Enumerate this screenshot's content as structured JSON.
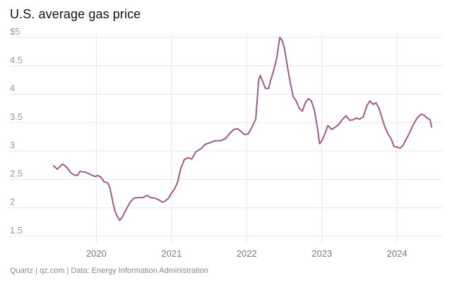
{
  "footer": "Quartz | qz.com | Data: Energy Information Administration",
  "colors": {
    "line": "#a05a8c",
    "grid": "#e6e6e6"
  },
  "chart_data": {
    "type": "line",
    "title": "U.S. average gas price",
    "xlabel": "",
    "ylabel": "",
    "x_range": [
      2019.0,
      2024.6
    ],
    "ylim": [
      1.5,
      5.0
    ],
    "y_ticks": [
      {
        "value": 1.5,
        "label": "1.5"
      },
      {
        "value": 2.0,
        "label": "2"
      },
      {
        "value": 2.5,
        "label": "2.5"
      },
      {
        "value": 3.0,
        "label": "3"
      },
      {
        "value": 3.5,
        "label": "3.5"
      },
      {
        "value": 4.0,
        "label": "4"
      },
      {
        "value": 4.5,
        "label": "4.5"
      },
      {
        "value": 5.0,
        "label": "$5"
      }
    ],
    "x_ticks": [
      {
        "value": 2020,
        "label": "2020"
      },
      {
        "value": 2021,
        "label": "2021"
      },
      {
        "value": 2022,
        "label": "2022"
      },
      {
        "value": 2023,
        "label": "2023"
      },
      {
        "value": 2024,
        "label": "2024"
      }
    ],
    "grid": true,
    "legend": "none",
    "series": [
      {
        "points": [
          [
            2019.43,
            2.74
          ],
          [
            2019.48,
            2.68
          ],
          [
            2019.55,
            2.77
          ],
          [
            2019.6,
            2.72
          ],
          [
            2019.66,
            2.62
          ],
          [
            2019.7,
            2.58
          ],
          [
            2019.75,
            2.57
          ],
          [
            2019.78,
            2.64
          ],
          [
            2019.85,
            2.63
          ],
          [
            2019.9,
            2.6
          ],
          [
            2019.95,
            2.57
          ],
          [
            2019.99,
            2.55
          ],
          [
            2020.02,
            2.57
          ],
          [
            2020.06,
            2.54
          ],
          [
            2020.1,
            2.46
          ],
          [
            2020.15,
            2.44
          ],
          [
            2020.18,
            2.35
          ],
          [
            2020.22,
            2.1
          ],
          [
            2020.25,
            1.93
          ],
          [
            2020.29,
            1.82
          ],
          [
            2020.31,
            1.78
          ],
          [
            2020.35,
            1.85
          ],
          [
            2020.4,
            1.98
          ],
          [
            2020.45,
            2.1
          ],
          [
            2020.5,
            2.17
          ],
          [
            2020.55,
            2.18
          ],
          [
            2020.62,
            2.18
          ],
          [
            2020.68,
            2.22
          ],
          [
            2020.72,
            2.18
          ],
          [
            2020.78,
            2.17
          ],
          [
            2020.83,
            2.14
          ],
          [
            2020.88,
            2.1
          ],
          [
            2020.92,
            2.12
          ],
          [
            2020.96,
            2.17
          ],
          [
            2021.0,
            2.26
          ],
          [
            2021.04,
            2.33
          ],
          [
            2021.08,
            2.45
          ],
          [
            2021.12,
            2.68
          ],
          [
            2021.17,
            2.85
          ],
          [
            2021.22,
            2.88
          ],
          [
            2021.27,
            2.86
          ],
          [
            2021.32,
            2.98
          ],
          [
            2021.4,
            3.05
          ],
          [
            2021.45,
            3.12
          ],
          [
            2021.52,
            3.15
          ],
          [
            2021.58,
            3.18
          ],
          [
            2021.65,
            3.18
          ],
          [
            2021.72,
            3.22
          ],
          [
            2021.78,
            3.32
          ],
          [
            2021.83,
            3.38
          ],
          [
            2021.88,
            3.39
          ],
          [
            2021.92,
            3.35
          ],
          [
            2021.97,
            3.29
          ],
          [
            2022.02,
            3.3
          ],
          [
            2022.07,
            3.42
          ],
          [
            2022.12,
            3.56
          ],
          [
            2022.16,
            4.25
          ],
          [
            2022.18,
            4.33
          ],
          [
            2022.22,
            4.2
          ],
          [
            2022.25,
            4.1
          ],
          [
            2022.29,
            4.1
          ],
          [
            2022.32,
            4.25
          ],
          [
            2022.36,
            4.42
          ],
          [
            2022.4,
            4.64
          ],
          [
            2022.44,
            5.0
          ],
          [
            2022.47,
            4.95
          ],
          [
            2022.5,
            4.82
          ],
          [
            2022.54,
            4.5
          ],
          [
            2022.58,
            4.2
          ],
          [
            2022.62,
            3.95
          ],
          [
            2022.66,
            3.88
          ],
          [
            2022.7,
            3.75
          ],
          [
            2022.74,
            3.7
          ],
          [
            2022.78,
            3.85
          ],
          [
            2022.82,
            3.92
          ],
          [
            2022.86,
            3.88
          ],
          [
            2022.9,
            3.72
          ],
          [
            2022.94,
            3.42
          ],
          [
            2022.97,
            3.13
          ],
          [
            2023.0,
            3.18
          ],
          [
            2023.04,
            3.3
          ],
          [
            2023.08,
            3.45
          ],
          [
            2023.13,
            3.38
          ],
          [
            2023.18,
            3.42
          ],
          [
            2023.22,
            3.46
          ],
          [
            2023.27,
            3.55
          ],
          [
            2023.32,
            3.62
          ],
          [
            2023.37,
            3.54
          ],
          [
            2023.42,
            3.55
          ],
          [
            2023.46,
            3.58
          ],
          [
            2023.5,
            3.56
          ],
          [
            2023.55,
            3.6
          ],
          [
            2023.6,
            3.8
          ],
          [
            2023.64,
            3.88
          ],
          [
            2023.68,
            3.82
          ],
          [
            2023.72,
            3.85
          ],
          [
            2023.76,
            3.75
          ],
          [
            2023.8,
            3.58
          ],
          [
            2023.84,
            3.42
          ],
          [
            2023.88,
            3.3
          ],
          [
            2023.92,
            3.22
          ],
          [
            2023.96,
            3.08
          ],
          [
            2024.0,
            3.07
          ],
          [
            2024.04,
            3.05
          ],
          [
            2024.08,
            3.1
          ],
          [
            2024.12,
            3.2
          ],
          [
            2024.16,
            3.3
          ],
          [
            2024.2,
            3.42
          ],
          [
            2024.24,
            3.52
          ],
          [
            2024.28,
            3.6
          ],
          [
            2024.32,
            3.65
          ],
          [
            2024.36,
            3.63
          ],
          [
            2024.4,
            3.58
          ],
          [
            2024.44,
            3.55
          ],
          [
            2024.46,
            3.42
          ]
        ]
      }
    ]
  }
}
